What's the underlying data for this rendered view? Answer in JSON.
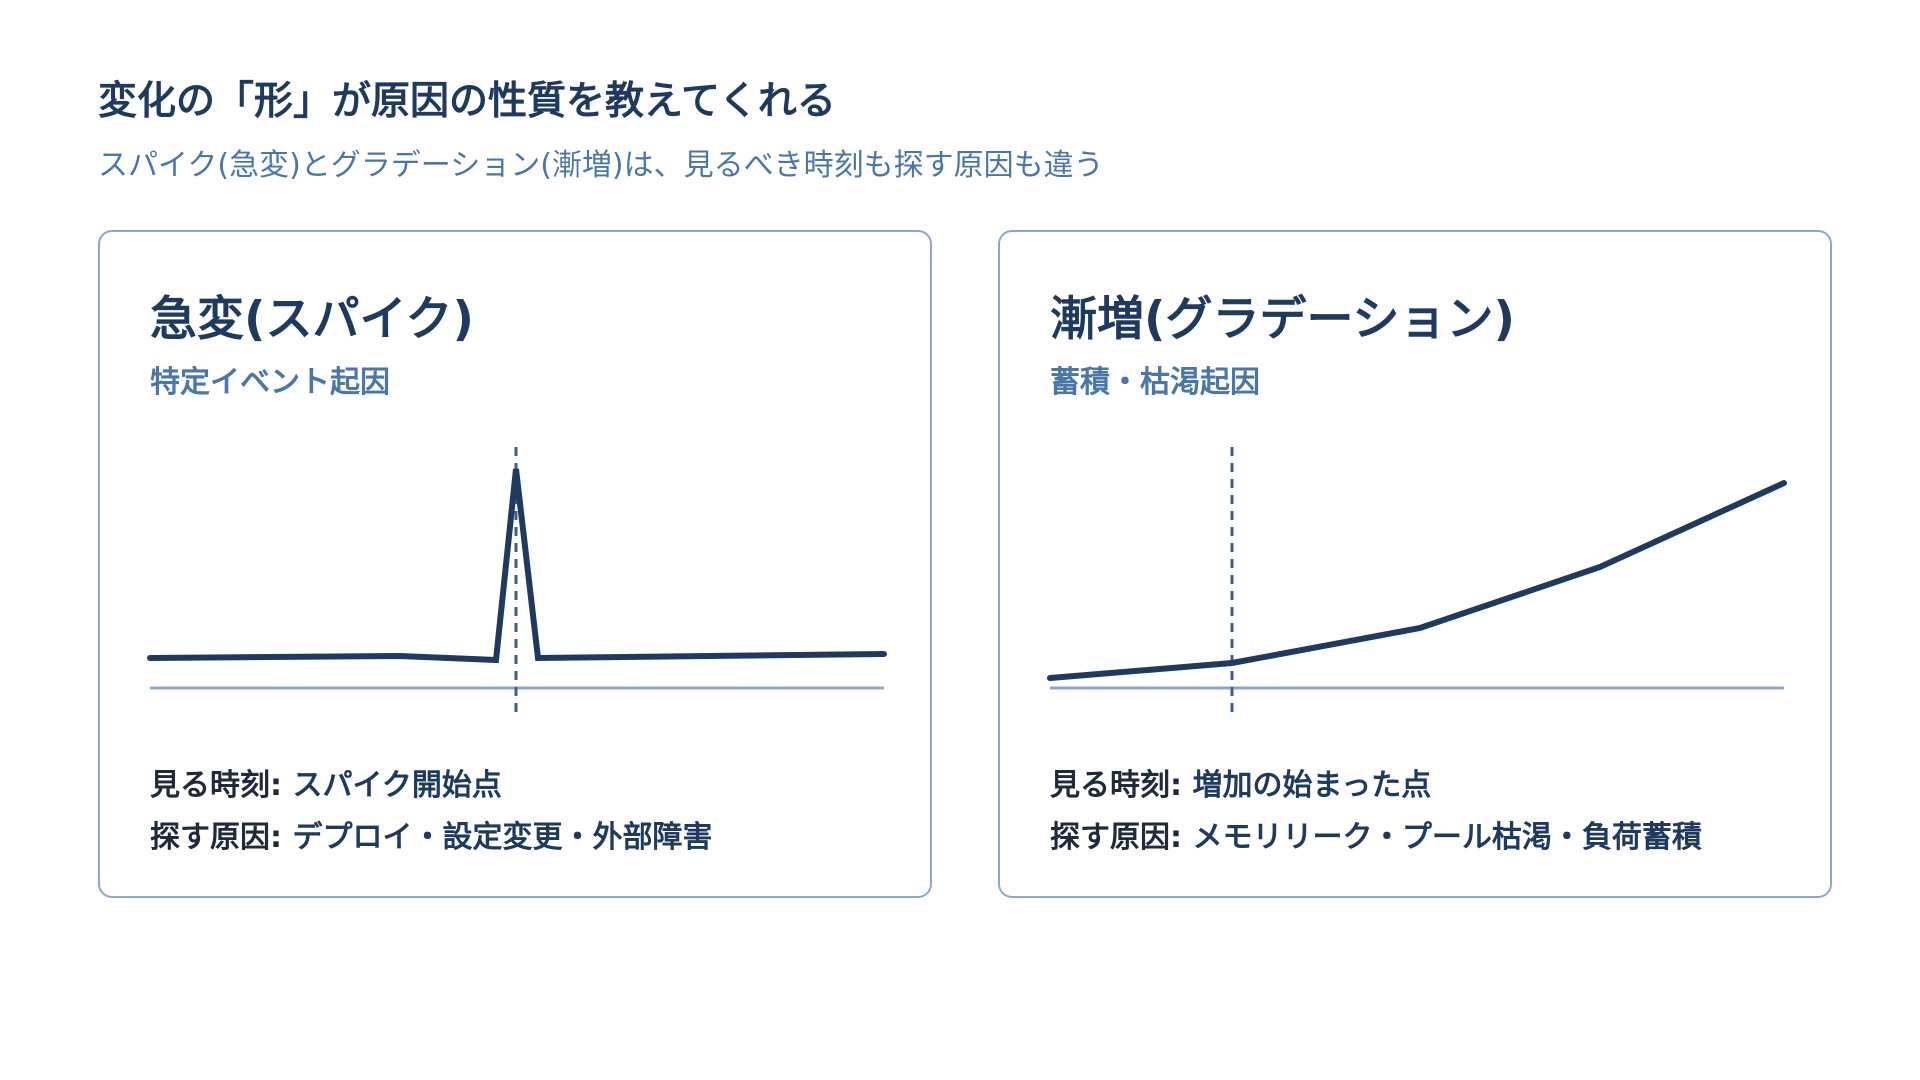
{
  "header": {
    "title": "変化の「形」が原因の性質を教えてくれる",
    "subtitle": "スパイク(急変)とグラデーション(漸増)は、見るべき時刻も探す原因も違う"
  },
  "cards": [
    {
      "title": "急変(スパイク)",
      "subtitle": "特定イベント起因",
      "rows": [
        {
          "label": "見る時刻:",
          "value": "スパイク開始点"
        },
        {
          "label": "探す原因:",
          "value": "デプロイ・設定変更・外部障害"
        }
      ]
    },
    {
      "title": "漸増(グラデーション)",
      "subtitle": "蓄積・枯渇起因",
      "rows": [
        {
          "label": "見る時刻:",
          "value": "増加の始まった点"
        },
        {
          "label": "探す原因:",
          "value": "メモリリーク・プール枯渇・負荷蓄積"
        }
      ]
    }
  ],
  "colors": {
    "title": "#1f3a5f",
    "accent": "#4a76a8",
    "border": "#8aa8cc"
  }
}
